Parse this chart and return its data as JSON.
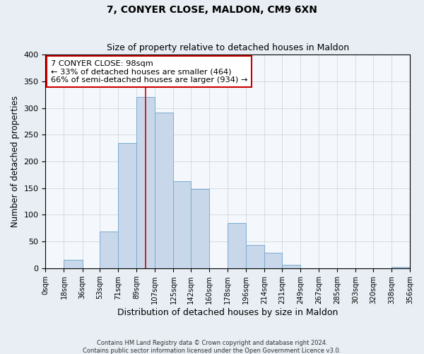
{
  "title": "7, CONYER CLOSE, MALDON, CM9 6XN",
  "subtitle": "Size of property relative to detached houses in Maldon",
  "xlabel": "Distribution of detached houses by size in Maldon",
  "ylabel": "Number of detached properties",
  "bin_edges": [
    0,
    18,
    36,
    53,
    71,
    89,
    107,
    125,
    142,
    160,
    178,
    196,
    214,
    231,
    249,
    267,
    285,
    303,
    320,
    338,
    356
  ],
  "bin_labels": [
    "0sqm",
    "18sqm",
    "36sqm",
    "53sqm",
    "71sqm",
    "89sqm",
    "107sqm",
    "125sqm",
    "142sqm",
    "160sqm",
    "178sqm",
    "196sqm",
    "214sqm",
    "231sqm",
    "249sqm",
    "267sqm",
    "285sqm",
    "303sqm",
    "320sqm",
    "338sqm",
    "356sqm"
  ],
  "counts": [
    0,
    16,
    0,
    69,
    235,
    320,
    292,
    163,
    148,
    0,
    85,
    44,
    29,
    7,
    0,
    0,
    0,
    0,
    0,
    2
  ],
  "bar_facecolor": "#c8d8ea",
  "bar_edgecolor": "#7aaccf",
  "property_line_x": 98,
  "property_line_color": "#cc0000",
  "annotation_lines": [
    "7 CONYER CLOSE: 98sqm",
    "← 33% of detached houses are smaller (464)",
    "66% of semi-detached houses are larger (934) →"
  ],
  "annotation_box_edgecolor": "#cc0000",
  "ylim": [
    0,
    400
  ],
  "yticks": [
    0,
    50,
    100,
    150,
    200,
    250,
    300,
    350,
    400
  ],
  "footnote1": "Contains HM Land Registry data © Crown copyright and database right 2024.",
  "footnote2": "Contains public sector information licensed under the Open Government Licence v3.0.",
  "background_color": "#e8eef4",
  "plot_background_color": "#f4f8fc",
  "grid_color": "#c8d0d8"
}
